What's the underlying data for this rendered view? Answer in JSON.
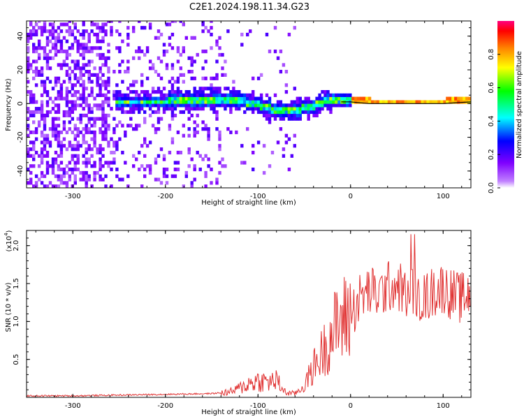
{
  "title": "C2E1.2024.198.11.34.G23",
  "chart_data": [
    {
      "type": "heatmap",
      "xlabel": "Height of straight line (km)",
      "ylabel": "Frequency (Hz)",
      "xlim": [
        -350,
        130
      ],
      "ylim": [
        -50,
        49
      ],
      "xticks": [
        -300,
        -200,
        -100,
        0,
        100
      ],
      "yticks": [
        -40,
        -20,
        0,
        20,
        40
      ],
      "colorbar": {
        "label": "Normalized spectral amplitude",
        "range": [
          0.0,
          1.0
        ],
        "ticks": [
          0.0,
          0.2,
          0.4,
          0.6,
          0.8
        ],
        "colors": [
          "#ffffff",
          "#c080ff",
          "#7f00ff",
          "#0000ff",
          "#00ffff",
          "#00ff00",
          "#ffff00",
          "#ff8000",
          "#ff0000",
          "#ff0080"
        ]
      },
      "ridge": {
        "x": [
          -250,
          -200,
          -150,
          -120,
          -100,
          -80,
          -60,
          -40,
          -30,
          -10,
          0,
          20,
          60,
          100,
          130
        ],
        "freq": [
          0,
          0,
          2,
          1,
          -2,
          -5,
          -5,
          -2,
          0,
          1,
          1,
          0,
          0,
          0,
          1
        ],
        "peak_amplitude": 0.9
      }
    },
    {
      "type": "line",
      "xlabel": "Height of straight line (km)",
      "ylabel": "SNR (10 * v/v)",
      "yscale_label": "(x10",
      "yscale_exp": "4",
      "xlim": [
        -350,
        130
      ],
      "ylim": [
        0,
        2.2
      ],
      "xticks": [
        -300,
        -200,
        -100,
        0,
        100
      ],
      "yticks": [
        0.5,
        1.0,
        1.5,
        2.0
      ],
      "series": [
        {
          "color": "#e03030",
          "x": [
            -350,
            -300,
            -250,
            -200,
            -150,
            -130,
            -120,
            -110,
            -100,
            -90,
            -80,
            -70,
            -60,
            -50,
            -40,
            -30,
            -20,
            -10,
            0,
            10,
            20,
            30,
            40,
            50,
            60,
            70,
            80,
            90,
            100,
            110,
            120,
            130
          ],
          "y": [
            0.02,
            0.02,
            0.03,
            0.04,
            0.05,
            0.07,
            0.12,
            0.18,
            0.22,
            0.2,
            0.22,
            0.06,
            0.05,
            0.15,
            0.4,
            0.6,
            0.85,
            1.0,
            1.1,
            1.3,
            1.4,
            1.35,
            1.45,
            1.5,
            1.35,
            1.4,
            1.3,
            1.4,
            1.45,
            1.35,
            1.3,
            1.4
          ]
        }
      ]
    }
  ]
}
